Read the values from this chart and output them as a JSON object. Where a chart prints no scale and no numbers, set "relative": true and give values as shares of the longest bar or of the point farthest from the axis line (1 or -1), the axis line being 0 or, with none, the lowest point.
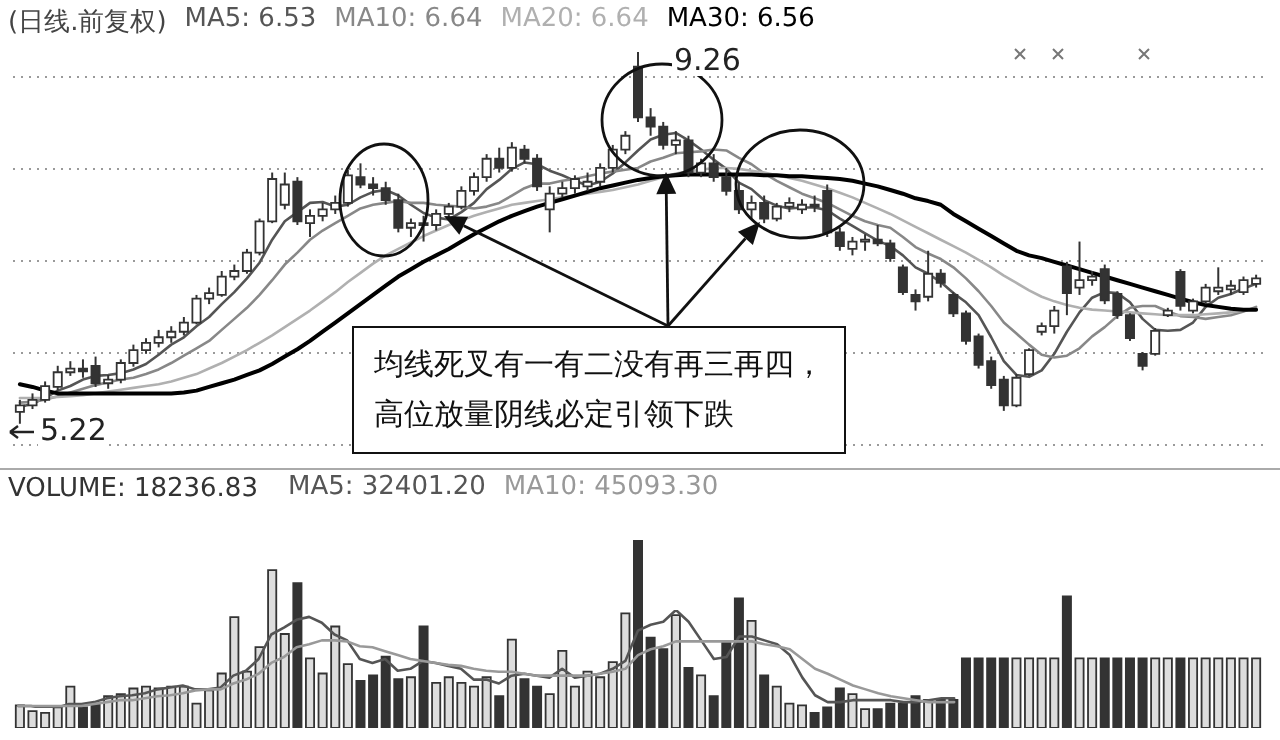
{
  "chart_data": [
    {
      "type": "candlestick",
      "title": "(日线.前复权)",
      "grid": "y",
      "yticks": [
        {
          "value": 5,
          "label": null
        },
        {
          "value": 6,
          "label": null
        },
        {
          "value": 7,
          "label": null
        },
        {
          "value": 8,
          "label": null
        },
        {
          "value": 9,
          "label": null
        }
      ],
      "categories": [
        null,
        null,
        null,
        null,
        null,
        null,
        null,
        null,
        null,
        null,
        null,
        null,
        null,
        null,
        null,
        null,
        null,
        null,
        null,
        null,
        null,
        null,
        null,
        null,
        null,
        null,
        null,
        null,
        null,
        null,
        null,
        null,
        null,
        null,
        null,
        null,
        null,
        null,
        null,
        null,
        null,
        null,
        null,
        null,
        null,
        null,
        null,
        null,
        null,
        null,
        null,
        null,
        null,
        null,
        null,
        null,
        null,
        null,
        null,
        null,
        null,
        null,
        null,
        null,
        null,
        null,
        null,
        null,
        null,
        null,
        null,
        null,
        null,
        null,
        null,
        null,
        null,
        null,
        null,
        null,
        null,
        null,
        null,
        null,
        null,
        null,
        null,
        null,
        null,
        null,
        null,
        null,
        null,
        null,
        null,
        null,
        null,
        null,
        null
      ],
      "ohlc": [
        [
          5.35,
          5.48,
          5.22,
          5.42
        ],
        [
          5.42,
          5.55,
          5.38,
          5.48
        ],
        [
          5.48,
          5.68,
          5.45,
          5.63
        ],
        [
          5.62,
          5.85,
          5.58,
          5.78
        ],
        [
          5.78,
          5.9,
          5.74,
          5.82
        ],
        [
          5.82,
          5.92,
          5.72,
          5.79
        ],
        [
          5.85,
          5.95,
          5.62,
          5.66
        ],
        [
          5.66,
          5.75,
          5.6,
          5.7
        ],
        [
          5.7,
          5.92,
          5.66,
          5.88
        ],
        [
          5.88,
          6.08,
          5.84,
          6.02
        ],
        [
          6.02,
          6.15,
          5.98,
          6.1
        ],
        [
          6.1,
          6.24,
          6.05,
          6.16
        ],
        [
          6.16,
          6.28,
          6.1,
          6.22
        ],
        [
          6.22,
          6.38,
          6.18,
          6.32
        ],
        [
          6.32,
          6.62,
          6.3,
          6.58
        ],
        [
          6.58,
          6.7,
          6.52,
          6.64
        ],
        [
          6.62,
          6.88,
          6.6,
          6.82
        ],
        [
          6.82,
          6.95,
          6.78,
          6.88
        ],
        [
          6.88,
          7.12,
          6.85,
          7.08
        ],
        [
          7.08,
          7.45,
          7.05,
          7.42
        ],
        [
          7.42,
          7.95,
          7.4,
          7.88
        ],
        [
          7.6,
          7.95,
          7.55,
          7.82
        ],
        [
          7.85,
          7.9,
          7.38,
          7.42
        ],
        [
          7.4,
          7.55,
          7.25,
          7.48
        ],
        [
          7.48,
          7.62,
          7.42,
          7.55
        ],
        [
          7.55,
          7.7,
          7.5,
          7.62
        ],
        [
          7.62,
          7.98,
          7.58,
          7.92
        ],
        [
          7.9,
          8.05,
          7.78,
          7.82
        ],
        [
          7.82,
          7.9,
          7.7,
          7.78
        ],
        [
          7.78,
          7.85,
          7.6,
          7.65
        ],
        [
          7.65,
          7.72,
          7.3,
          7.35
        ],
        [
          7.35,
          7.45,
          7.25,
          7.4
        ],
        [
          7.4,
          7.48,
          7.2,
          7.38
        ],
        [
          7.38,
          7.55,
          7.32,
          7.5
        ],
        [
          7.5,
          7.62,
          7.45,
          7.58
        ],
        [
          7.58,
          7.8,
          7.55,
          7.75
        ],
        [
          7.75,
          7.95,
          7.7,
          7.9
        ],
        [
          7.9,
          8.15,
          7.85,
          8.1
        ],
        [
          8.1,
          8.22,
          7.95,
          8.0
        ],
        [
          8.0,
          8.28,
          7.96,
          8.22
        ],
        [
          8.2,
          8.25,
          8.05,
          8.1
        ],
        [
          8.1,
          8.15,
          7.75,
          7.8
        ],
        [
          7.55,
          7.8,
          7.3,
          7.72
        ],
        [
          7.72,
          7.85,
          7.68,
          7.78
        ],
        [
          7.78,
          7.92,
          7.72,
          7.88
        ],
        [
          7.8,
          7.95,
          7.75,
          7.85
        ],
        [
          7.85,
          8.05,
          7.8,
          8.0
        ],
        [
          8.0,
          8.25,
          7.95,
          8.2
        ],
        [
          8.2,
          8.4,
          8.15,
          8.35
        ],
        [
          9.1,
          9.26,
          8.5,
          8.55
        ],
        [
          8.55,
          8.65,
          8.35,
          8.45
        ],
        [
          8.45,
          8.5,
          8.2,
          8.25
        ],
        [
          8.25,
          8.4,
          8.15,
          8.3
        ],
        [
          8.3,
          8.35,
          7.9,
          7.95
        ],
        [
          7.95,
          8.1,
          7.9,
          8.05
        ],
        [
          8.05,
          8.15,
          7.85,
          7.9
        ],
        [
          7.9,
          8.0,
          7.7,
          7.75
        ],
        [
          7.75,
          7.85,
          7.5,
          7.55
        ],
        [
          7.55,
          7.7,
          7.45,
          7.62
        ],
        [
          7.62,
          7.7,
          7.4,
          7.45
        ],
        [
          7.45,
          7.62,
          7.42,
          7.58
        ],
        [
          7.58,
          7.68,
          7.52,
          7.62
        ],
        [
          7.55,
          7.66,
          7.5,
          7.6
        ],
        [
          7.6,
          7.7,
          7.52,
          7.58
        ],
        [
          7.75,
          7.82,
          7.25,
          7.3
        ],
        [
          7.3,
          7.35,
          7.1,
          7.15
        ],
        [
          7.12,
          7.25,
          7.05,
          7.2
        ],
        [
          7.2,
          7.28,
          7.1,
          7.22
        ],
        [
          7.22,
          7.38,
          7.15,
          7.18
        ],
        [
          7.18,
          7.22,
          6.98,
          7.02
        ],
        [
          6.92,
          6.95,
          6.62,
          6.65
        ],
        [
          6.62,
          6.68,
          6.45,
          6.55
        ],
        [
          6.6,
          7.1,
          6.55,
          6.85
        ],
        [
          6.85,
          6.9,
          6.7,
          6.75
        ],
        [
          6.62,
          6.65,
          6.38,
          6.42
        ],
        [
          6.42,
          6.45,
          6.08,
          6.12
        ],
        [
          6.17,
          6.2,
          5.82,
          5.86
        ],
        [
          5.9,
          5.95,
          5.6,
          5.64
        ],
        [
          5.7,
          5.74,
          5.36,
          5.42
        ],
        [
          5.42,
          5.76,
          5.4,
          5.72
        ],
        [
          5.76,
          6.04,
          5.74,
          6.02
        ],
        [
          6.22,
          6.32,
          6.18,
          6.28
        ],
        [
          6.28,
          6.5,
          6.2,
          6.45
        ],
        [
          6.93,
          6.98,
          6.4,
          6.64
        ],
        [
          6.7,
          7.2,
          6.62,
          6.78
        ],
        [
          6.78,
          6.88,
          6.72,
          6.82
        ],
        [
          6.9,
          6.95,
          6.52,
          6.56
        ],
        [
          6.63,
          6.66,
          6.36,
          6.4
        ],
        [
          6.4,
          6.42,
          6.12,
          6.15
        ],
        [
          5.98,
          6.0,
          5.8,
          5.85
        ],
        [
          5.98,
          6.26,
          5.96,
          6.23
        ],
        [
          6.4,
          6.48,
          6.38,
          6.45
        ],
        [
          6.87,
          6.9,
          6.45,
          6.5
        ],
        [
          6.45,
          6.58,
          6.42,
          6.55
        ],
        [
          6.55,
          6.74,
          6.52,
          6.7
        ],
        [
          6.66,
          6.92,
          6.62,
          6.7
        ],
        [
          6.68,
          6.78,
          6.62,
          6.72
        ],
        [
          6.65,
          6.82,
          6.62,
          6.78
        ],
        [
          6.74,
          6.84,
          6.7,
          6.8
        ]
      ],
      "series": [
        {
          "name": "MA5: 6.53",
          "type": "line",
          "color": "#555555",
          "values": [
            5.4,
            5.44,
            5.5,
            5.58,
            5.63,
            5.7,
            5.74,
            5.75,
            5.77,
            5.81,
            5.87,
            5.97,
            6.08,
            6.16,
            6.28,
            6.38,
            6.52,
            6.65,
            6.8,
            6.97,
            7.22,
            7.42,
            7.52,
            7.62,
            7.63,
            7.58,
            7.6,
            7.68,
            7.74,
            7.76,
            7.7,
            7.6,
            7.51,
            7.46,
            7.44,
            7.52,
            7.62,
            7.77,
            7.87,
            7.99,
            8.06,
            8.04,
            7.97,
            7.92,
            7.86,
            7.81,
            7.85,
            7.94,
            8.06,
            8.19,
            8.31,
            8.36,
            8.38,
            8.3,
            8.2,
            8.09,
            7.99,
            7.84,
            7.77,
            7.65,
            7.59,
            7.56,
            7.57,
            7.57,
            7.54,
            7.45,
            7.37,
            7.29,
            7.21,
            7.15,
            7.05,
            6.92,
            6.85,
            6.76,
            6.64,
            6.54,
            6.4,
            6.16,
            5.9,
            5.75,
            5.73,
            5.8,
            5.98,
            6.22,
            6.43,
            6.59,
            6.65,
            6.64,
            6.54,
            6.36,
            6.24,
            6.23,
            6.24,
            6.32,
            6.49,
            6.59,
            6.63,
            6.69,
            6.74
          ]
        },
        {
          "name": "MA10: 6.64",
          "type": "line",
          "color": "#888888",
          "values": [
            5.45,
            5.46,
            5.48,
            5.52,
            5.56,
            5.6,
            5.64,
            5.67,
            5.7,
            5.72,
            5.76,
            5.81,
            5.88,
            5.96,
            6.04,
            6.12,
            6.24,
            6.36,
            6.48,
            6.62,
            6.78,
            6.95,
            7.08,
            7.22,
            7.32,
            7.4,
            7.48,
            7.56,
            7.6,
            7.62,
            7.64,
            7.62,
            7.62,
            7.6,
            7.59,
            7.58,
            7.56,
            7.58,
            7.62,
            7.7,
            7.78,
            7.83,
            7.83,
            7.86,
            7.88,
            7.91,
            7.94,
            7.96,
            7.98,
            8.0,
            8.07,
            8.11,
            8.16,
            8.17,
            8.18,
            8.2,
            8.19,
            8.11,
            8.04,
            7.94,
            7.86,
            7.79,
            7.72,
            7.67,
            7.62,
            7.55,
            7.48,
            7.42,
            7.38,
            7.35,
            7.25,
            7.14,
            7.07,
            7.01,
            6.92,
            6.8,
            6.66,
            6.5,
            6.32,
            6.2,
            6.08,
            5.97,
            5.94,
            5.96,
            6.04,
            6.17,
            6.27,
            6.39,
            6.48,
            6.5,
            6.5,
            6.44,
            6.39,
            6.38,
            6.36,
            6.38,
            6.4,
            6.44,
            6.49
          ]
        },
        {
          "name": "MA20: 6.64",
          "type": "line",
          "color": "#b0b0b0",
          "values": [
            5.5,
            5.5,
            5.5,
            5.51,
            5.52,
            5.53,
            5.55,
            5.57,
            5.59,
            5.61,
            5.63,
            5.65,
            5.68,
            5.72,
            5.76,
            5.82,
            5.88,
            5.95,
            6.02,
            6.1,
            6.18,
            6.27,
            6.36,
            6.45,
            6.55,
            6.65,
            6.76,
            6.86,
            6.96,
            7.05,
            7.12,
            7.19,
            7.26,
            7.32,
            7.38,
            7.43,
            7.48,
            7.52,
            7.56,
            7.6,
            7.62,
            7.64,
            7.66,
            7.68,
            7.7,
            7.72,
            7.74,
            7.76,
            7.79,
            7.82,
            7.86,
            7.9,
            7.94,
            7.96,
            7.98,
            8.0,
            8.0,
            7.99,
            7.97,
            7.95,
            7.92,
            7.89,
            7.86,
            7.82,
            7.78,
            7.73,
            7.68,
            7.62,
            7.56,
            7.5,
            7.43,
            7.36,
            7.29,
            7.22,
            7.15,
            7.08,
            7.0,
            6.92,
            6.83,
            6.75,
            6.67,
            6.6,
            6.55,
            6.51,
            6.48,
            6.46,
            6.45,
            6.44,
            6.43,
            6.42,
            6.41,
            6.4,
            6.4,
            6.4,
            6.41,
            6.42,
            6.43,
            6.45,
            6.47
          ]
        },
        {
          "name": "MA30: 6.56",
          "type": "line",
          "color": "#000000",
          "values": [
            5.65,
            5.62,
            5.58,
            5.55,
            5.55,
            5.55,
            5.55,
            5.55,
            5.55,
            5.55,
            5.55,
            5.55,
            5.55,
            5.56,
            5.58,
            5.62,
            5.66,
            5.7,
            5.75,
            5.8,
            5.87,
            5.95,
            6.03,
            6.12,
            6.22,
            6.32,
            6.42,
            6.52,
            6.62,
            6.72,
            6.82,
            6.9,
            6.98,
            7.05,
            7.12,
            7.2,
            7.28,
            7.35,
            7.42,
            7.48,
            7.53,
            7.58,
            7.62,
            7.66,
            7.7,
            7.74,
            7.78,
            7.81,
            7.84,
            7.87,
            7.89,
            7.91,
            7.92,
            7.93,
            7.93,
            7.93,
            7.93,
            7.93,
            7.93,
            7.92,
            7.92,
            7.91,
            7.91,
            7.9,
            7.89,
            7.88,
            7.86,
            7.83,
            7.8,
            7.76,
            7.72,
            7.67,
            7.64,
            7.6,
            7.5,
            7.42,
            7.34,
            7.26,
            7.18,
            7.1,
            7.05,
            7.02,
            6.98,
            6.94,
            6.9,
            6.86,
            6.82,
            6.78,
            6.74,
            6.7,
            6.66,
            6.62,
            6.58,
            6.54,
            6.51,
            6.49,
            6.47,
            6.46,
            6.46
          ]
        }
      ],
      "annotations": [
        "9.26",
        "5.22",
        "均线死叉有一有二没有再三再四，",
        "高位放量阴线必定引领下跌"
      ]
    },
    {
      "type": "bar",
      "relative": true,
      "categories": [
        null,
        null,
        null,
        null,
        null,
        null,
        null,
        null,
        null,
        null,
        null,
        null,
        null,
        null,
        null,
        null,
        null,
        null,
        null,
        null,
        null,
        null,
        null,
        null,
        null,
        null,
        null,
        null,
        null,
        null,
        null,
        null,
        null,
        null,
        null,
        null,
        null,
        null,
        null,
        null,
        null,
        null,
        null,
        null,
        null,
        null,
        null,
        null,
        null,
        null,
        null,
        null,
        null,
        null,
        null,
        null,
        null,
        null,
        null,
        null,
        null,
        null,
        null,
        null,
        null,
        null,
        null,
        null,
        null,
        null,
        null,
        null,
        null,
        null,
        null,
        null,
        null,
        null,
        null,
        null,
        null,
        null,
        null,
        null,
        null,
        null,
        null,
        null,
        null,
        null,
        null,
        null,
        null,
        null,
        null,
        null,
        null,
        null,
        null
      ],
      "series": [
        {
          "name": "VOLUME: 18236.83",
          "color": "#333333",
          "colors": [
            "#dddddd",
            "#dddddd",
            "#dddddd",
            "#dddddd",
            "#dddddd",
            "#333333",
            "#333333",
            "#dddddd",
            "#dddddd",
            "#dddddd",
            "#dddddd",
            "#dddddd",
            "#dddddd",
            "#dddddd",
            "#dddddd",
            "#dddddd",
            "#dddddd",
            "#dddddd",
            "#dddddd",
            "#dddddd",
            "#dddddd",
            "#dddddd",
            "#333333",
            "#dddddd",
            "#dddddd",
            "#dddddd",
            "#dddddd",
            "#333333",
            "#333333",
            "#333333",
            "#333333",
            "#dddddd",
            "#333333",
            "#dddddd",
            "#dddddd",
            "#dddddd",
            "#dddddd",
            "#dddddd",
            "#333333",
            "#dddddd",
            "#333333",
            "#333333",
            "#dddddd",
            "#dddddd",
            "#dddddd",
            "#dddddd",
            "#dddddd",
            "#dddddd",
            "#dddddd",
            "#333333",
            "#333333",
            "#333333",
            "#dddddd",
            "#333333",
            "#dddddd",
            "#333333",
            "#333333",
            "#333333",
            "#dddddd",
            "#333333",
            "#dddddd",
            "#dddddd",
            "#dddddd",
            "#333333",
            "#333333",
            "#333333",
            "#dddddd",
            "#dddddd",
            "#333333",
            "#333333",
            "#333333",
            "#333333",
            "#dddddd",
            "#333333",
            "#333333",
            "#333333",
            "#333333",
            "#333333",
            "#333333",
            "#dddddd",
            "#dddddd",
            "#dddddd",
            "#dddddd",
            "#333333",
            "#dddddd",
            "#dddddd",
            "#333333",
            "#333333",
            "#333333",
            "#333333",
            "#dddddd",
            "#dddddd",
            "#333333",
            "#dddddd",
            "#dddddd",
            "#dddddd",
            "#dddddd",
            "#dddddd",
            "#dddddd"
          ],
          "values": [
            0.12,
            0.09,
            0.08,
            0.11,
            0.22,
            0.11,
            0.13,
            0.17,
            0.18,
            0.21,
            0.22,
            0.21,
            0.22,
            0.22,
            0.13,
            0.2,
            0.29,
            0.59,
            0.3,
            0.43,
            0.84,
            0.5,
            0.77,
            0.37,
            0.29,
            0.54,
            0.34,
            0.25,
            0.28,
            0.38,
            0.26,
            0.27,
            0.54,
            0.24,
            0.27,
            0.24,
            0.22,
            0.27,
            0.17,
            0.47,
            0.26,
            0.22,
            0.18,
            0.41,
            0.22,
            0.3,
            0.27,
            0.35,
            0.61,
            1.0,
            0.48,
            0.42,
            0.6,
            0.32,
            0.28,
            0.17,
            0.46,
            0.69,
            0.57,
            0.28,
            0.22,
            0.13,
            0.12,
            0.08,
            0.11,
            0.21,
            0.18,
            0.1,
            0.1,
            0.13,
            0.13,
            0.17,
            0.15,
            0.15,
            0.15,
            0.37,
            0.37,
            0.37,
            0.37,
            0.37,
            0.37,
            0.37,
            0.37,
            0.7,
            0.37,
            0.37,
            0.37,
            0.37,
            0.37,
            0.37,
            0.37,
            0.37,
            0.37,
            0.37,
            0.37,
            0.37,
            0.37,
            0.37,
            0.37
          ]
        }
      ]
    },
    {
      "type": "line",
      "relative": true,
      "categories": [
        null,
        null,
        null,
        null,
        null,
        null,
        null,
        null,
        null,
        null,
        null,
        null,
        null,
        null,
        null,
        null,
        null,
        null,
        null,
        null,
        null,
        null,
        null,
        null,
        null,
        null,
        null,
        null,
        null,
        null,
        null,
        null,
        null,
        null,
        null,
        null,
        null,
        null,
        null,
        null,
        null,
        null,
        null,
        null,
        null,
        null,
        null,
        null,
        null,
        null,
        null,
        null,
        null,
        null,
        null,
        null,
        null,
        null,
        null,
        null,
        null,
        null,
        null,
        null,
        null,
        null,
        null,
        null,
        null,
        null,
        null,
        null,
        null,
        null,
        null,
        null,
        null,
        null,
        null,
        null,
        null,
        null,
        null,
        null,
        null,
        null,
        null,
        null,
        null,
        null,
        null,
        null,
        null,
        null,
        null,
        null,
        null,
        null,
        null
      ],
      "series": [
        {
          "name": "MA5: 32401.20",
          "color": "#555555",
          "values": [
            0.02,
            0.02,
            0,
            0,
            0.04,
            0.04,
            0.06,
            0.1,
            0.12,
            0.13,
            0.15,
            0.19,
            0.21,
            0.23,
            0.19,
            0.19,
            0.21,
            0.33,
            0.38,
            0.5,
            0.75,
            0.82,
            0.9,
            0.93,
            0.87,
            0.75,
            0.69,
            0.5,
            0.46,
            0.5,
            0.38,
            0.4,
            0.48,
            0.46,
            0.43,
            0.4,
            0.29,
            0.29,
            0.25,
            0.33,
            0.35,
            0.33,
            0.31,
            0.4,
            0.31,
            0.33,
            0.35,
            0.4,
            0.48,
            0.79,
            0.85,
            0.88,
            1.0,
            0.88,
            0.69,
            0.5,
            0.52,
            0.73,
            0.73,
            0.69,
            0.65,
            0.54,
            0.31,
            0.13,
            0.06,
            0.06,
            0.08,
            0.08,
            0.08,
            0.08,
            0.06,
            0.06,
            0.08,
            0.1,
            0.1,
            null,
            null,
            null,
            null,
            null,
            null,
            null,
            null,
            null,
            null,
            null,
            null,
            null,
            null,
            null,
            null,
            null,
            null,
            null,
            null,
            null,
            null,
            null,
            null
          ]
        },
        {
          "name": "MA10: 45093.30",
          "color": "#999999",
          "values": [
            0.02,
            0.02,
            0.02,
            0.02,
            0.02,
            0.02,
            0.04,
            0.06,
            0.08,
            0.08,
            0.1,
            0.12,
            0.13,
            0.15,
            0.18,
            0.19,
            0.19,
            0.25,
            0.29,
            0.35,
            0.46,
            0.52,
            0.62,
            0.65,
            0.69,
            0.69,
            0.68,
            0.63,
            0.62,
            0.58,
            0.54,
            0.5,
            0.48,
            0.46,
            0.44,
            0.43,
            0.4,
            0.38,
            0.37,
            0.37,
            0.35,
            0.33,
            0.33,
            0.33,
            0.33,
            0.33,
            0.35,
            0.37,
            0.4,
            0.54,
            0.6,
            0.63,
            0.68,
            0.68,
            0.68,
            0.68,
            0.68,
            0.68,
            0.68,
            0.65,
            0.63,
            0.6,
            0.5,
            0.4,
            0.35,
            0.29,
            0.23,
            0.19,
            0.15,
            0.12,
            0.1,
            0.08,
            0.06,
            0.06,
            0.06,
            null,
            null,
            null,
            null,
            null,
            null,
            null,
            null,
            null,
            null,
            null,
            null,
            null,
            null,
            null,
            null,
            null,
            null,
            null,
            null,
            null,
            null,
            null,
            null
          ]
        }
      ]
    }
  ]
}
